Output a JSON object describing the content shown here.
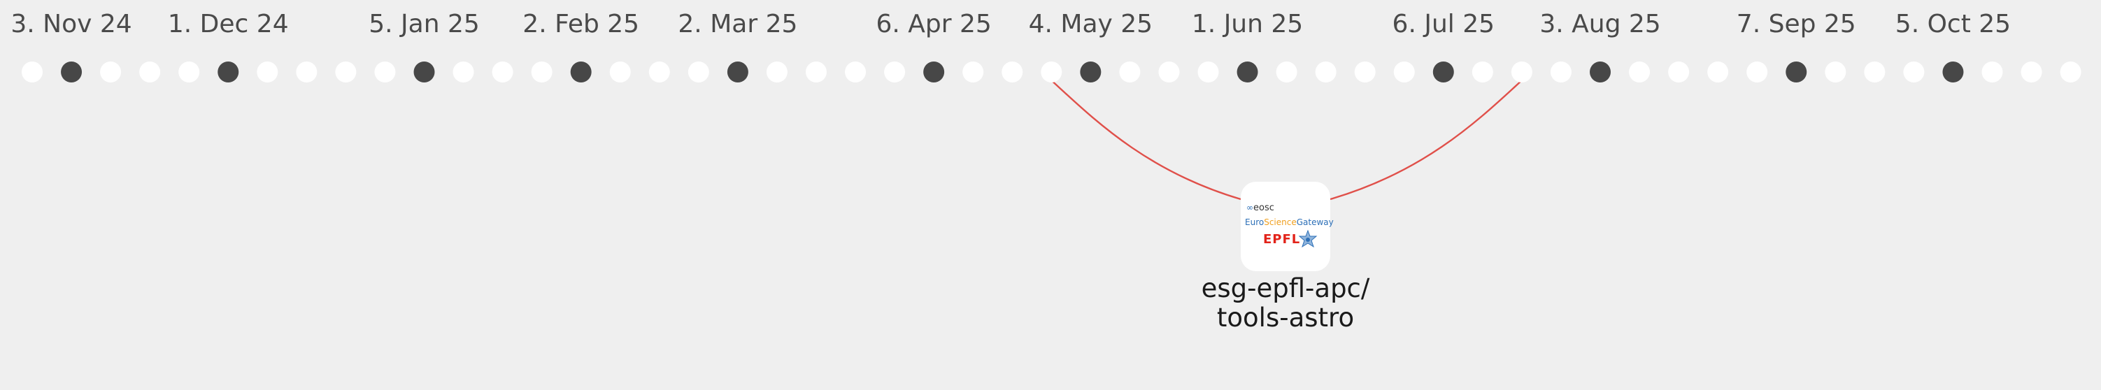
{
  "date_labels": [
    {
      "text": "3. Nov 24",
      "dot": 1
    },
    {
      "text": "1. Dec 24",
      "dot": 5
    },
    {
      "text": "5. Jan 25",
      "dot": 10
    },
    {
      "text": "2. Feb 25",
      "dot": 14
    },
    {
      "text": "2. Mar 25",
      "dot": 18
    },
    {
      "text": "6. Apr 25",
      "dot": 23
    },
    {
      "text": "4. May 25",
      "dot": 27
    },
    {
      "text": "1. Jun 25",
      "dot": 31
    },
    {
      "text": "6. Jul 25",
      "dot": 36
    },
    {
      "text": "3. Aug 25",
      "dot": 40
    },
    {
      "text": "7. Sep 25",
      "dot": 45
    },
    {
      "text": "5. Oct 25",
      "dot": 49
    }
  ],
  "dot_count": 53,
  "highlighted_dots": [
    1,
    5,
    10,
    14,
    18,
    23,
    27,
    31,
    36,
    40,
    45,
    49
  ],
  "repository": {
    "name_line1": "esg-epfl-apc/",
    "name_line2": "tools-astro",
    "logo": {
      "eosc_rings": "∞",
      "eosc": "eosc",
      "esg_euro": "Euro",
      "esg_science": "Science",
      "esg_gateway": "Gateway",
      "epfl": "EPFL"
    },
    "connections": {
      "from_dot": 26,
      "to_dot": 38
    }
  },
  "colors": {
    "background": "#efefef",
    "dot": "#ffffff",
    "dot_highlight": "#474747",
    "label": "#4a4a4a",
    "link": "#e0504a"
  }
}
